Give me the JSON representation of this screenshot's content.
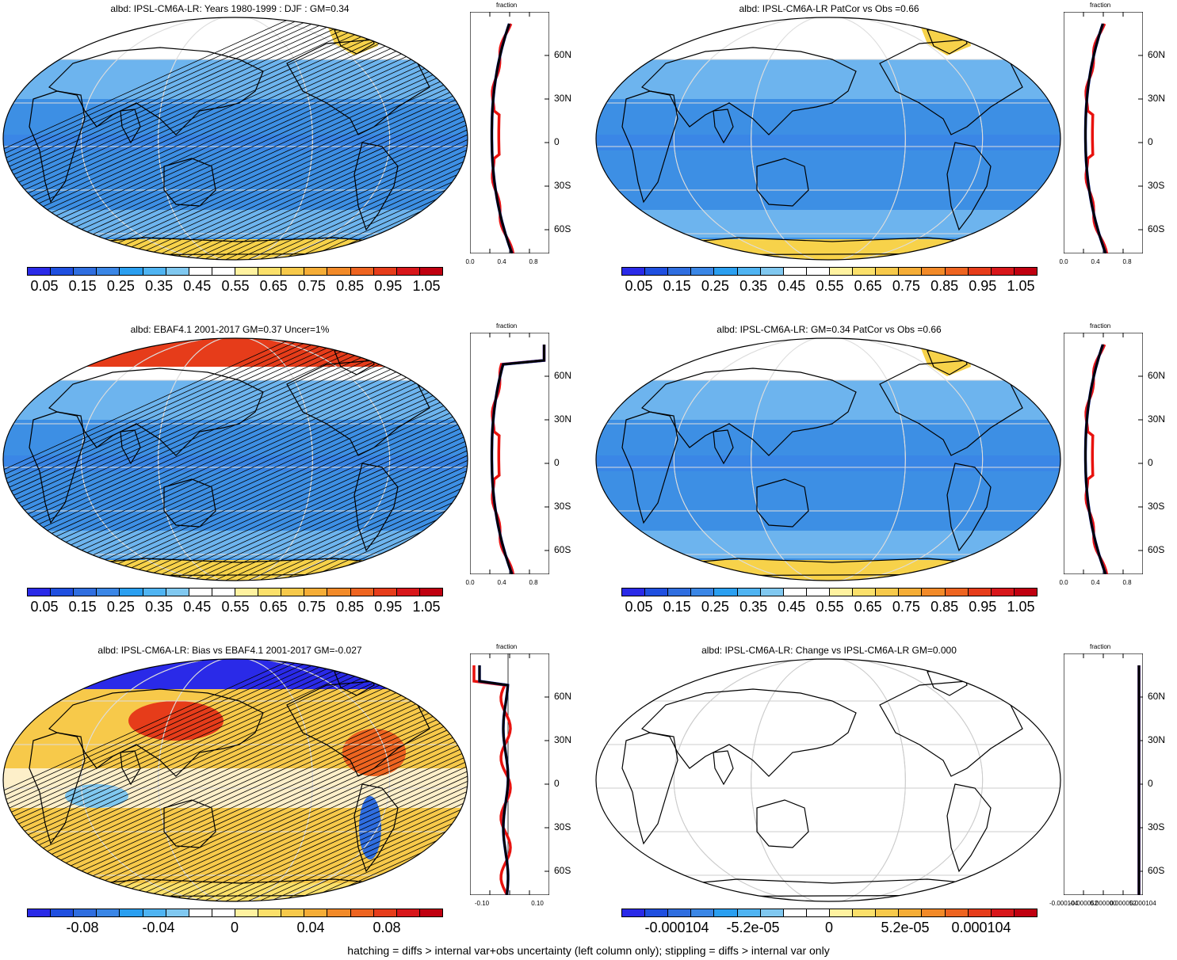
{
  "panels": [
    {
      "title": "albd: IPSL-CM6A-LR: Years 1980-1999 : DJF : GM=0.34",
      "kind": "abs",
      "hatched": true,
      "profile_label": "fraction",
      "lat_ticks": [
        "60N",
        "30N",
        "0",
        "30S",
        "60S"
      ],
      "x_ticks": [
        "0.0",
        "0.4",
        "0.8"
      ],
      "colorbar_labels": [
        "0.05",
        "0.15",
        "0.25",
        "0.35",
        "0.45",
        "0.55",
        "0.65",
        "0.75",
        "0.85",
        "0.95",
        "1.05"
      ]
    },
    {
      "title": "albd: IPSL-CM6A-LR PatCor vs Obs =0.66",
      "kind": "abs",
      "hatched": false,
      "profile_label": "fraction",
      "lat_ticks": [
        "60N",
        "30N",
        "0",
        "30S",
        "60S"
      ],
      "x_ticks": [
        "0.0",
        "0.4",
        "0.8"
      ],
      "colorbar_labels": [
        "0.05",
        "0.15",
        "0.25",
        "0.35",
        "0.45",
        "0.55",
        "0.65",
        "0.75",
        "0.85",
        "0.95",
        "1.05"
      ]
    },
    {
      "title": "albd: EBAF4.1 2001-2017 GM=0.37 Uncer=1%",
      "kind": "obs",
      "hatched": true,
      "profile_label": "fraction",
      "lat_ticks": [
        "60N",
        "30N",
        "0",
        "30S",
        "60S"
      ],
      "x_ticks": [
        "0.0",
        "0.4",
        "0.8"
      ],
      "colorbar_labels": [
        "0.05",
        "0.15",
        "0.25",
        "0.35",
        "0.45",
        "0.55",
        "0.65",
        "0.75",
        "0.85",
        "0.95",
        "1.05"
      ]
    },
    {
      "title": "albd: IPSL-CM6A-LR: GM=0.34 PatCor vs Obs =0.66",
      "kind": "abs",
      "hatched": false,
      "profile_label": "fraction",
      "lat_ticks": [
        "60N",
        "30N",
        "0",
        "30S",
        "60S"
      ],
      "x_ticks": [
        "0.0",
        "0.4",
        "0.8"
      ],
      "colorbar_labels": [
        "0.05",
        "0.15",
        "0.25",
        "0.35",
        "0.45",
        "0.55",
        "0.65",
        "0.75",
        "0.85",
        "0.95",
        "1.05"
      ]
    },
    {
      "title": "albd: IPSL-CM6A-LR: Bias vs EBAF4.1 2001-2017 GM=-0.027",
      "kind": "bias",
      "hatched": true,
      "profile_label": "fraction",
      "lat_ticks": [
        "60N",
        "30N",
        "0",
        "30S",
        "60S"
      ],
      "x_ticks": [
        "-0.10",
        "0.10"
      ],
      "colorbar_labels": [
        "-0.08",
        "-0.04",
        "0",
        "0.04",
        "0.08"
      ]
    },
    {
      "title": "albd: IPSL-CM6A-LR: Change vs IPSL-CM6A-LR GM=0.000",
      "kind": "change",
      "hatched": false,
      "profile_label": "fraction",
      "lat_ticks": [
        "60N",
        "30N",
        "0",
        "30S",
        "60S"
      ],
      "x_ticks": [
        "-0.000104",
        "-0.000052",
        "0.000000",
        "0.000052",
        "0.000104"
      ],
      "colorbar_labels": [
        "-0.000104",
        "-5.2e-05",
        "0",
        "5.2e-05",
        "0.000104"
      ]
    }
  ],
  "colors": {
    "scale": [
      "#2a2ae8",
      "#1f4fe0",
      "#2f6ee0",
      "#3a86e6",
      "#2a9ff0",
      "#4fb4f2",
      "#80c8f0",
      "#ffffff",
      "#ffffff",
      "#fff2a0",
      "#fbe06a",
      "#f7c94a",
      "#f5ad36",
      "#f28a28",
      "#ee6420",
      "#e63c1a",
      "#d8161a",
      "#c00010"
    ],
    "ocean_main": "#3d8fe4",
    "ocean_light": "#6db4ee",
    "ice": "#f7d24a",
    "model_line": "#0a28d8",
    "obs_line": "#e8120e",
    "ref_line": "#000000"
  },
  "footer": "hatching = diffs > internal var+obs uncertainty (left column only); stippling = diffs > internal var only"
}
